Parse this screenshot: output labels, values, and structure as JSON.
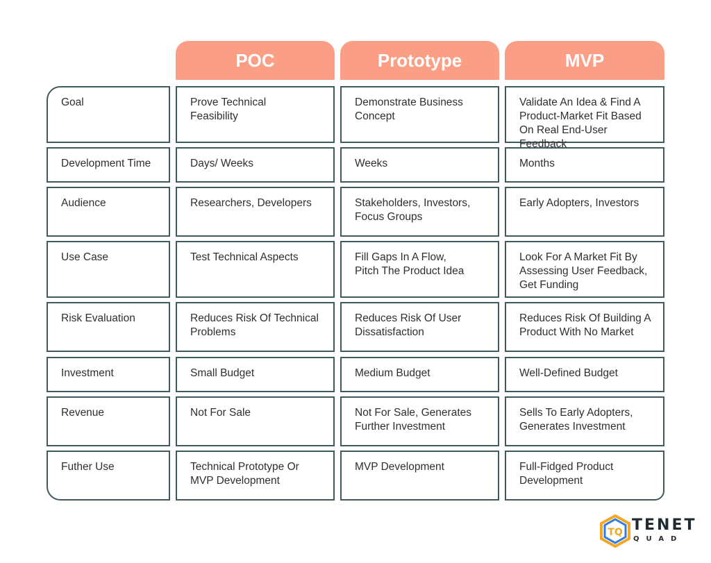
{
  "columns": [
    "POC",
    "Prototype",
    "MVP"
  ],
  "rows": [
    {
      "label": "Goal",
      "cells": [
        "Prove Technical\nFeasibility",
        "Demonstrate Business\nConcept",
        "Validate An Idea & Find A\nProduct-Market Fit Based\nOn Real End-User Feedback"
      ]
    },
    {
      "label": "Development Time",
      "cells": [
        "Days/ Weeks",
        "Weeks",
        "Months"
      ]
    },
    {
      "label": "Audience",
      "cells": [
        "Researchers, Developers",
        "Stakeholders, Investors,\nFocus Groups",
        "Early Adopters, Investors"
      ]
    },
    {
      "label": "Use Case",
      "cells": [
        "Test Technical Aspects",
        "Fill Gaps In A Flow,\nPitch The Product Idea",
        "Look For A Market Fit By\nAssessing User Feedback,\nGet Funding"
      ]
    },
    {
      "label": "Risk Evaluation",
      "cells": [
        "Reduces Risk Of Technical\nProblems",
        "Reduces Risk Of User\nDissatisfaction",
        "Reduces Risk Of Building A\nProduct With No Market"
      ]
    },
    {
      "label": "Investment",
      "cells": [
        "Small Budget",
        "Medium Budget",
        "Well-Defined Budget"
      ]
    },
    {
      "label": "Revenue",
      "cells": [
        "Not For Sale",
        "Not For Sale, Generates\nFurther Investment",
        "Sells To Early Adopters,\nGenerates Investment"
      ]
    },
    {
      "label": "Futher Use",
      "cells": [
        "Technical Prototype Or\nMVP Development",
        "MVP Development",
        "Full-Fidged Product\nDevelopment"
      ]
    }
  ],
  "brand": {
    "name": "TENET",
    "sub": "QUAD",
    "icon": "hexagon-tq-logo",
    "colors": {
      "accent": "#fa9e86",
      "border": "#3f5a5d",
      "logo_orange": "#f5a623",
      "logo_blue": "#2f7de1"
    }
  }
}
